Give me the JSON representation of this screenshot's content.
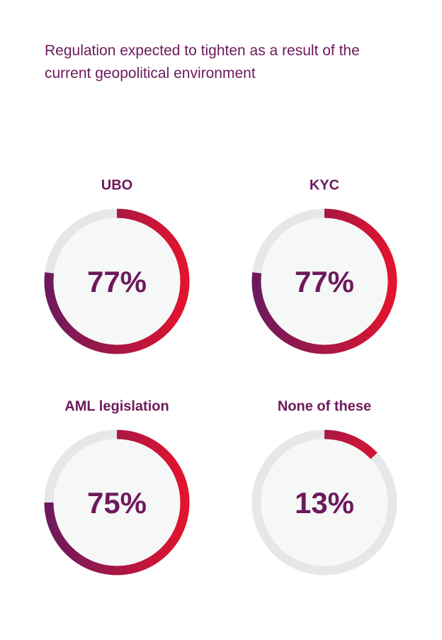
{
  "title": "Regulation expected to tighten as a result of the current geopolitical environment",
  "chart_data": [
    {
      "type": "donut",
      "title": "UBO",
      "values": [
        77
      ],
      "value_labels": [
        "77%"
      ]
    },
    {
      "type": "donut",
      "title": "KYC",
      "values": [
        77
      ],
      "value_labels": [
        "77%"
      ]
    },
    {
      "type": "donut",
      "title": "AML legislation",
      "values": [
        75
      ],
      "value_labels": [
        "75%"
      ]
    },
    {
      "type": "donut",
      "title": "None of these",
      "values": [
        13
      ],
      "value_labels": [
        "13%"
      ]
    }
  ]
}
